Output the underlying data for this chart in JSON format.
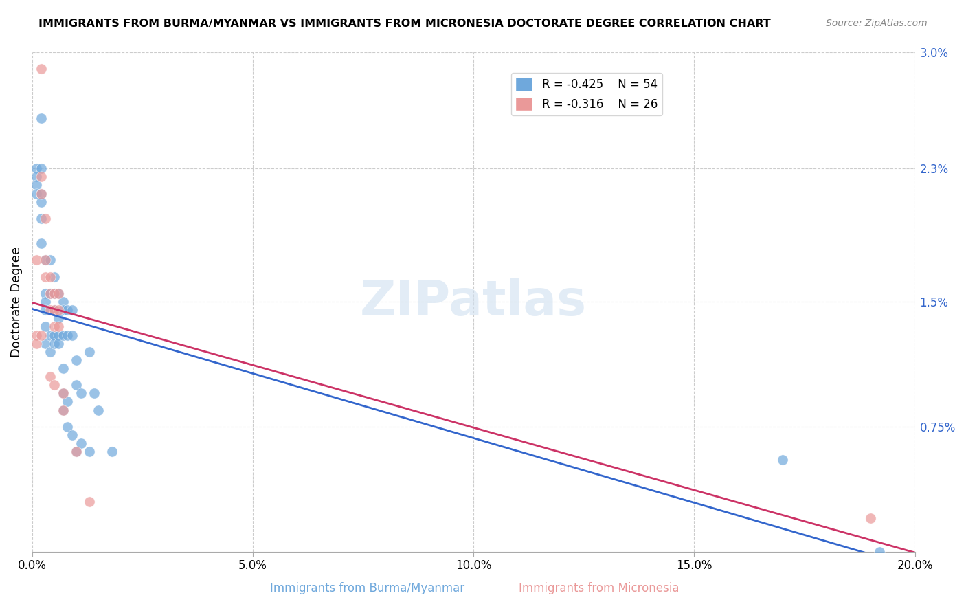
{
  "title": "IMMIGRANTS FROM BURMA/MYANMAR VS IMMIGRANTS FROM MICRONESIA DOCTORATE DEGREE CORRELATION CHART",
  "source": "Source: ZipAtlas.com",
  "ylabel": "Doctorate Degree",
  "xlabel_bottom": "",
  "legend_blue_label": "Immigrants from Burma/Myanmar",
  "legend_pink_label": "Immigrants from Micronesia",
  "legend_blue_r": "R = -0.425",
  "legend_blue_n": "N = 54",
  "legend_pink_r": "R = -0.316",
  "legend_pink_n": "N = 26",
  "blue_color": "#6fa8dc",
  "pink_color": "#ea9999",
  "line_blue_color": "#3366cc",
  "line_pink_color": "#cc3366",
  "xlim": [
    0.0,
    0.2
  ],
  "ylim": [
    0.0,
    0.03
  ],
  "xticks": [
    0.0,
    0.05,
    0.1,
    0.15,
    0.2
  ],
  "yticks_right": [
    0.0075,
    0.015,
    0.023,
    0.03
  ],
  "ytick_labels_right": [
    "0.75%",
    "1.5%",
    "2.3%",
    "3.0%"
  ],
  "watermark": "ZIPatlas",
  "blue_x": [
    0.001,
    0.001,
    0.001,
    0.001,
    0.002,
    0.002,
    0.002,
    0.002,
    0.002,
    0.002,
    0.003,
    0.003,
    0.003,
    0.003,
    0.003,
    0.003,
    0.004,
    0.004,
    0.004,
    0.004,
    0.005,
    0.005,
    0.005,
    0.005,
    0.005,
    0.006,
    0.006,
    0.006,
    0.006,
    0.007,
    0.007,
    0.007,
    0.007,
    0.007,
    0.007,
    0.008,
    0.008,
    0.008,
    0.008,
    0.009,
    0.009,
    0.009,
    0.01,
    0.01,
    0.01,
    0.011,
    0.011,
    0.013,
    0.013,
    0.014,
    0.015,
    0.018,
    0.17,
    0.192
  ],
  "blue_y": [
    0.023,
    0.0225,
    0.022,
    0.0215,
    0.026,
    0.023,
    0.0215,
    0.021,
    0.02,
    0.0185,
    0.0175,
    0.0155,
    0.015,
    0.0145,
    0.0135,
    0.0125,
    0.0175,
    0.0155,
    0.013,
    0.012,
    0.0165,
    0.0155,
    0.0145,
    0.013,
    0.0125,
    0.0155,
    0.014,
    0.013,
    0.0125,
    0.015,
    0.0145,
    0.013,
    0.011,
    0.0095,
    0.0085,
    0.0145,
    0.013,
    0.009,
    0.0075,
    0.0145,
    0.013,
    0.007,
    0.0115,
    0.01,
    0.006,
    0.0095,
    0.0065,
    0.012,
    0.006,
    0.0095,
    0.0085,
    0.006,
    0.0055,
    0.0
  ],
  "pink_x": [
    0.001,
    0.001,
    0.001,
    0.002,
    0.002,
    0.002,
    0.002,
    0.003,
    0.003,
    0.003,
    0.004,
    0.004,
    0.004,
    0.004,
    0.005,
    0.005,
    0.005,
    0.005,
    0.006,
    0.006,
    0.006,
    0.007,
    0.007,
    0.01,
    0.013,
    0.19
  ],
  "pink_y": [
    0.0175,
    0.013,
    0.0125,
    0.029,
    0.0225,
    0.0215,
    0.013,
    0.02,
    0.0175,
    0.0165,
    0.0165,
    0.0155,
    0.0145,
    0.0105,
    0.0155,
    0.0145,
    0.0135,
    0.01,
    0.0155,
    0.0145,
    0.0135,
    0.0095,
    0.0085,
    0.006,
    0.003,
    0.002
  ]
}
